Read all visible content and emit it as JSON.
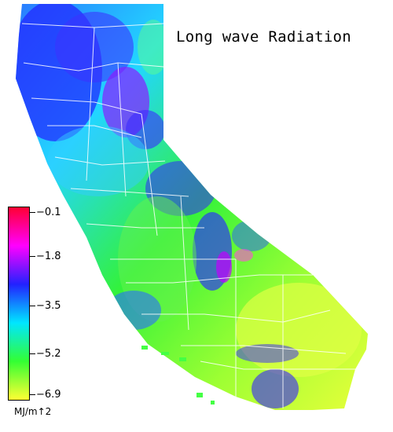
{
  "title": "Long wave Radiation",
  "legend": {
    "ticks": [
      "−0.1",
      "−1.8",
      "−3.5",
      "−5.2",
      "−6.9"
    ],
    "unit": "MJ/m↑2",
    "colors": [
      "#ff0033",
      "#ff00ff",
      "#2222ff",
      "#00e6ff",
      "#33ff33",
      "#ffff33"
    ]
  }
}
